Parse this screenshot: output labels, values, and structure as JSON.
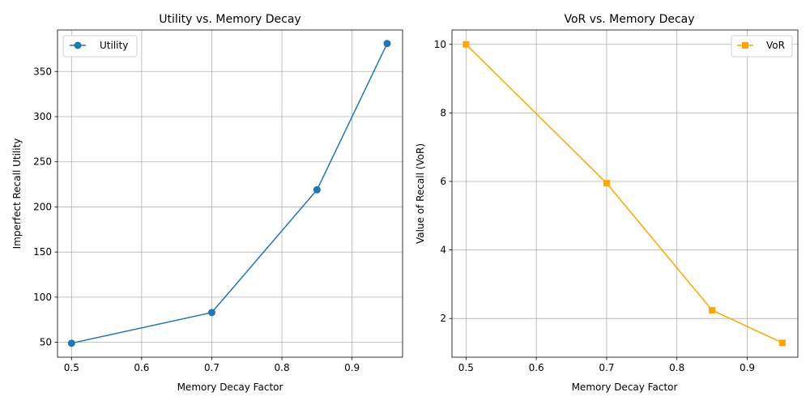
{
  "chart_data": [
    {
      "type": "line",
      "title": "Utility vs. Memory Decay",
      "xlabel": "Memory Decay Factor",
      "ylabel": "Imperfect Recall Utility",
      "xlim": [
        0.48,
        0.972
      ],
      "ylim": [
        33.5,
        396.0
      ],
      "x_ticks": [
        0.5,
        0.6,
        0.7,
        0.8,
        0.9
      ],
      "x_tick_labels": [
        "0.5",
        "0.6",
        "0.7",
        "0.8",
        "0.9"
      ],
      "y_ticks": [
        50,
        100,
        150,
        200,
        250,
        300,
        350
      ],
      "y_tick_labels": [
        "50",
        "100",
        "150",
        "200",
        "250",
        "300",
        "350"
      ],
      "grid": true,
      "legend": "upper-left",
      "series": [
        {
          "name": "Utility",
          "color": "#1f77b4",
          "marker": "circle",
          "x": [
            0.5,
            0.7,
            0.85,
            0.95
          ],
          "y": [
            49,
            83,
            219,
            381
          ]
        }
      ]
    },
    {
      "type": "line",
      "title": "VoR vs. Memory Decay",
      "xlabel": "Memory Decay Factor",
      "ylabel": "Value of Recall (VoR)",
      "xlim": [
        0.48,
        0.972
      ],
      "ylim": [
        0.87,
        10.42
      ],
      "x_ticks": [
        0.5,
        0.6,
        0.7,
        0.8,
        0.9
      ],
      "x_tick_labels": [
        "0.5",
        "0.6",
        "0.7",
        "0.8",
        "0.9"
      ],
      "y_ticks": [
        2,
        4,
        6,
        8,
        10
      ],
      "y_tick_labels": [
        "2",
        "4",
        "6",
        "8",
        "10"
      ],
      "grid": true,
      "legend": "upper-right",
      "series": [
        {
          "name": "VoR",
          "color": "#ffa500",
          "marker": "square",
          "x": [
            0.5,
            0.7,
            0.85,
            0.95
          ],
          "y": [
            10.0,
            5.95,
            2.24,
            1.29
          ]
        }
      ]
    }
  ]
}
